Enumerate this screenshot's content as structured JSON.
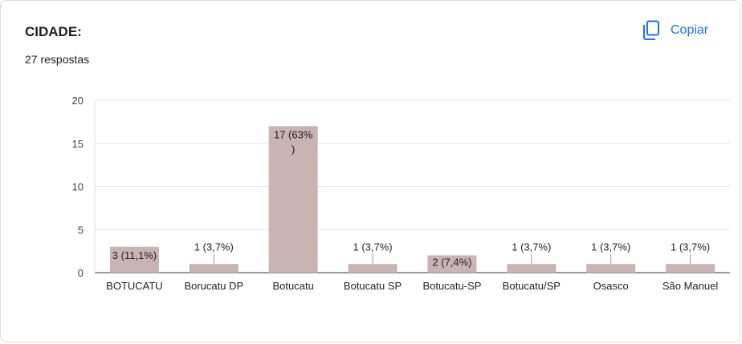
{
  "header": {
    "title": "CIDADE:",
    "responses": "27 respostas",
    "copy_label": "Copiar",
    "copy_icon": "copy-icon"
  },
  "colors": {
    "bar": "#c9b3b3",
    "accent": "#1a73e8",
    "grid": "#e6e6e6"
  },
  "chart_data": {
    "type": "bar",
    "title": "CIDADE:",
    "xlabel": "",
    "ylabel": "",
    "ylim": [
      0,
      20
    ],
    "yticks": [
      0,
      5,
      10,
      15,
      20
    ],
    "grid": true,
    "categories": [
      "BOTUCATU",
      "Borucatu DP",
      "Botucatu",
      "Botucatu SP",
      "Botucatu-SP",
      "Botucatu/SP",
      "Osasco",
      "São Manuel"
    ],
    "values": [
      3,
      1,
      17,
      1,
      2,
      1,
      1,
      1
    ],
    "data_labels": [
      "3 (11,1%)",
      "1 (3,7%)",
      "17 (63%\n)",
      "1 (3,7%)",
      "2 (7,4%)",
      "1 (3,7%)",
      "1 (3,7%)",
      "1 (3,7%)"
    ]
  }
}
